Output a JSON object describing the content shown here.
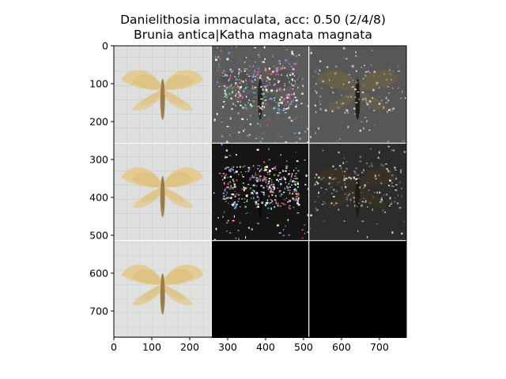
{
  "figure": {
    "title_line1": "Danielithosia immaculata, acc: 0.50 (2/4/8)",
    "title_line2": "Brunia antica|Katha magnata magnata"
  },
  "axes": {
    "x_ticks": [
      "0",
      "100",
      "200",
      "300",
      "400",
      "500",
      "600",
      "700"
    ],
    "y_ticks": [
      "0",
      "100",
      "200",
      "300",
      "400",
      "500",
      "600",
      "700"
    ]
  },
  "grid": {
    "rows": 3,
    "cols": 3,
    "tiles": [
      {
        "row": 0,
        "col": 0,
        "content": "moth-photo"
      },
      {
        "row": 0,
        "col": 1,
        "content": "saliency-colored"
      },
      {
        "row": 0,
        "col": 2,
        "content": "masked-overlay"
      },
      {
        "row": 1,
        "col": 0,
        "content": "moth-photo"
      },
      {
        "row": 1,
        "col": 1,
        "content": "saliency-colored"
      },
      {
        "row": 1,
        "col": 2,
        "content": "masked-overlay"
      },
      {
        "row": 2,
        "col": 0,
        "content": "moth-photo"
      },
      {
        "row": 2,
        "col": 1,
        "content": "empty-black"
      },
      {
        "row": 2,
        "col": 2,
        "content": "empty-black"
      }
    ]
  }
}
